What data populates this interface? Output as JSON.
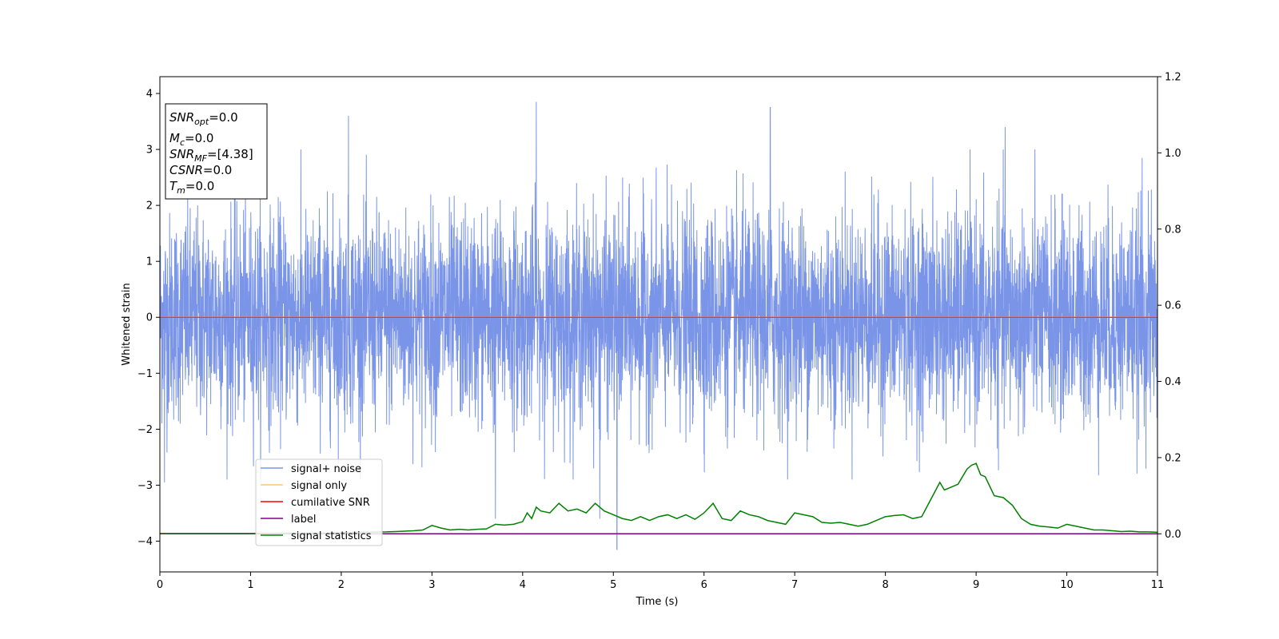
{
  "chart_data": {
    "type": "line",
    "xlabel": "Time (s)",
    "ylabel": "Whitened strain",
    "xlim": [
      0,
      11
    ],
    "ylim": [
      -4.55,
      4.3
    ],
    "y2lim": [
      -0.1,
      1.2
    ],
    "x_ticks": [
      "0",
      "1",
      "2",
      "3",
      "4",
      "5",
      "6",
      "7",
      "8",
      "9",
      "10",
      "11"
    ],
    "y_ticks": [
      "−4",
      "−3",
      "−2",
      "−1",
      "0",
      "1",
      "2",
      "3",
      "4"
    ],
    "y2_ticks": [
      "0.0",
      "0.2",
      "0.4",
      "0.6",
      "0.8",
      "1.0",
      "1.2"
    ],
    "grid": false,
    "legend_position": "lower-left",
    "info_box": {
      "snr_opt": {
        "sym": "SNR",
        "sub": "opt",
        "value": "=0.0"
      },
      "mc": {
        "sym": "M",
        "sub": "c",
        "value": "=0.0"
      },
      "snr_mf": {
        "sym": "SNR",
        "sub": "MF",
        "value": "=[4.38]"
      },
      "csnr": {
        "sym": "CSNR",
        "value": "=0.0"
      },
      "tm": {
        "sym": "T",
        "sub": "m",
        "value": "=0.0"
      }
    },
    "series": [
      {
        "name": "signal+ noise",
        "color": "#7a95e8",
        "axis": "left",
        "description_values": "dense noise, approx. spread -4.2 to 3.9"
      },
      {
        "name": "signal only",
        "color": "#fdc57a",
        "axis": "left",
        "values_constant": 0
      },
      {
        "name": "cumilative SNR",
        "color": "#ff0000",
        "axis": "left",
        "values_constant": 0
      },
      {
        "name": "label",
        "color": "#800080",
        "axis": "right",
        "values_constant": 0
      },
      {
        "name": "signal statistics",
        "color": "#008000",
        "axis": "right",
        "x": [
          0.0,
          0.25,
          0.5,
          0.75,
          1.0,
          1.25,
          1.5,
          1.75,
          2.0,
          2.25,
          2.5,
          2.6,
          2.7,
          2.8,
          2.9,
          3.0,
          3.1,
          3.2,
          3.3,
          3.4,
          3.5,
          3.6,
          3.7,
          3.8,
          3.9,
          4.0,
          4.05,
          4.1,
          4.15,
          4.2,
          4.3,
          4.4,
          4.5,
          4.6,
          4.7,
          4.8,
          4.9,
          5.0,
          5.1,
          5.2,
          5.3,
          5.4,
          5.5,
          5.6,
          5.7,
          5.8,
          5.9,
          6.0,
          6.1,
          6.2,
          6.3,
          6.4,
          6.5,
          6.6,
          6.7,
          6.8,
          6.9,
          7.0,
          7.1,
          7.2,
          7.3,
          7.4,
          7.5,
          7.6,
          7.7,
          7.8,
          7.9,
          8.0,
          8.1,
          8.2,
          8.3,
          8.4,
          8.5,
          8.6,
          8.65,
          8.7,
          8.8,
          8.9,
          8.95,
          9.0,
          9.05,
          9.1,
          9.2,
          9.3,
          9.4,
          9.5,
          9.6,
          9.7,
          9.8,
          9.9,
          10.0,
          10.1,
          10.2,
          10.3,
          10.4,
          10.5,
          10.6,
          10.7,
          10.8,
          10.9,
          11.0
        ],
        "values": [
          0.001,
          0.001,
          0.001,
          0.001,
          0.001,
          0.0015,
          0.002,
          0.002,
          0.003,
          0.004,
          0.005,
          0.006,
          0.007,
          0.008,
          0.01,
          0.022,
          0.015,
          0.01,
          0.012,
          0.01,
          0.012,
          0.013,
          0.025,
          0.023,
          0.025,
          0.032,
          0.055,
          0.04,
          0.07,
          0.06,
          0.055,
          0.08,
          0.06,
          0.065,
          0.055,
          0.08,
          0.06,
          0.05,
          0.04,
          0.035,
          0.045,
          0.035,
          0.045,
          0.05,
          0.04,
          0.05,
          0.038,
          0.055,
          0.08,
          0.04,
          0.035,
          0.06,
          0.05,
          0.045,
          0.035,
          0.03,
          0.025,
          0.055,
          0.05,
          0.045,
          0.03,
          0.028,
          0.03,
          0.025,
          0.02,
          0.025,
          0.035,
          0.045,
          0.048,
          0.05,
          0.04,
          0.045,
          0.09,
          0.135,
          0.115,
          0.12,
          0.13,
          0.17,
          0.18,
          0.185,
          0.155,
          0.15,
          0.1,
          0.095,
          0.075,
          0.04,
          0.025,
          0.02,
          0.018,
          0.015,
          0.025,
          0.02,
          0.015,
          0.01,
          0.01,
          0.008,
          0.006,
          0.007,
          0.005,
          0.005,
          0.004
        ]
      }
    ]
  }
}
